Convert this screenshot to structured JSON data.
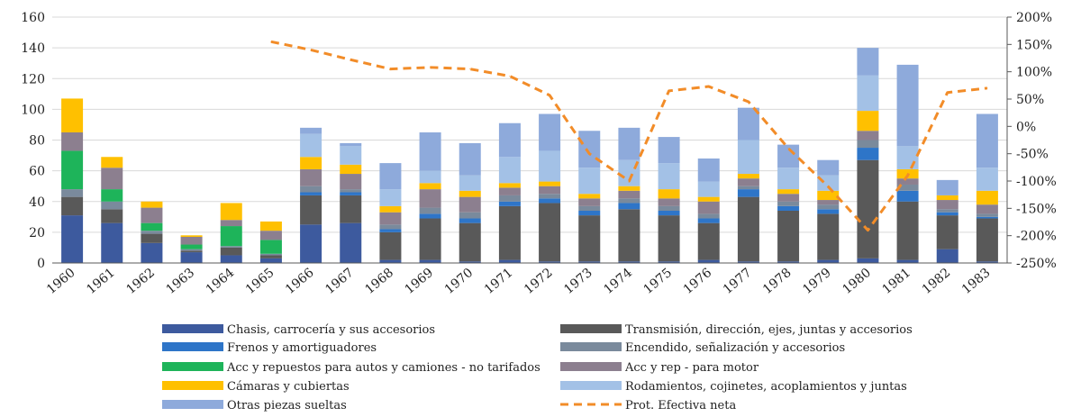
{
  "chart_data": {
    "type": "stacked-bar-line",
    "categories": [
      "1960",
      "1961",
      "1962",
      "1963",
      "1964",
      "1965",
      "1966",
      "1967",
      "1968",
      "1969",
      "1970",
      "1971",
      "1972",
      "1973",
      "1974",
      "1975",
      "1976",
      "1977",
      "1978",
      "1979",
      "1980",
      "1981",
      "1982",
      "1983"
    ],
    "y_left": {
      "min": 0,
      "max": 160,
      "ticks": [
        0,
        20,
        40,
        60,
        80,
        100,
        120,
        140,
        160
      ]
    },
    "y_right": {
      "min": -250,
      "max": 200,
      "ticks": [
        -250,
        -200,
        -150,
        -100,
        -50,
        0,
        50,
        100,
        150,
        200
      ],
      "tick_labels": [
        "-250%",
        "-200%",
        "-150%",
        "-100%",
        "-50%",
        "0%",
        "50%",
        "100%",
        "150%",
        "200%"
      ]
    },
    "series": [
      {
        "name": "Chasis, carrocería y sus accesorios",
        "color": "#3d5a9e",
        "values": [
          31,
          26,
          13,
          7,
          5,
          3,
          25,
          26,
          2,
          2,
          1,
          2,
          1,
          1,
          1,
          1,
          2,
          1,
          1,
          2,
          3,
          2,
          9,
          1
        ]
      },
      {
        "name": "Transmisión, dirección, ejes, juntas y accesorios",
        "color": "#595959",
        "values": [
          12,
          9,
          6,
          1,
          5,
          2,
          19,
          18,
          18,
          27,
          25,
          35,
          38,
          30,
          34,
          30,
          24,
          42,
          33,
          30,
          64,
          38,
          22,
          28
        ]
      },
      {
        "name": "Frenos y amortiguadores",
        "color": "#2e75c8",
        "values": [
          0,
          0,
          0,
          0,
          0,
          0,
          2,
          2,
          2,
          3,
          3,
          3,
          3,
          3,
          4,
          3,
          3,
          5,
          3,
          3,
          8,
          7,
          2,
          1
        ]
      },
      {
        "name": "Encendido, señalización y accesorios",
        "color": "#7a8a9c",
        "values": [
          5,
          5,
          2,
          1,
          1,
          1,
          4,
          2,
          3,
          4,
          4,
          4,
          3,
          3,
          3,
          3,
          3,
          2,
          3,
          3,
          5,
          4,
          2,
          2
        ]
      },
      {
        "name": "Acc y repuestos para autos y camiones - no tarifados",
        "color": "#1eb45a",
        "values": [
          25,
          8,
          5,
          3,
          13,
          9,
          0,
          0,
          0,
          0,
          0,
          0,
          0,
          0,
          0,
          0,
          0,
          0,
          0,
          0,
          0,
          0,
          0,
          0
        ]
      },
      {
        "name": "Acc y rep - para motor",
        "color": "#8c7f8f",
        "values": [
          12,
          14,
          10,
          5,
          4,
          6,
          11,
          10,
          8,
          12,
          10,
          5,
          5,
          5,
          5,
          5,
          8,
          5,
          5,
          3,
          6,
          4,
          6,
          6
        ]
      },
      {
        "name": "Cámaras y cubiertas",
        "color": "#ffc000",
        "values": [
          22,
          7,
          4,
          1,
          11,
          6,
          8,
          6,
          4,
          4,
          4,
          3,
          3,
          3,
          3,
          6,
          3,
          3,
          3,
          6,
          13,
          6,
          3,
          9
        ]
      },
      {
        "name": "Rodamientos, cojinetes, acoplamientos y juntas",
        "color": "#a3c1e6",
        "values": [
          0,
          0,
          0,
          0,
          0,
          0,
          15,
          12,
          11,
          8,
          10,
          17,
          20,
          17,
          17,
          17,
          10,
          22,
          14,
          10,
          23,
          15,
          0,
          15
        ]
      },
      {
        "name": "Otras piezas sueltas",
        "color": "#8eaadb",
        "values": [
          0,
          0,
          0,
          0,
          0,
          0,
          4,
          2,
          17,
          25,
          21,
          22,
          24,
          24,
          21,
          17,
          15,
          21,
          15,
          10,
          18,
          53,
          10,
          35
        ]
      }
    ],
    "line": {
      "name": "Prot. Efectiva neta",
      "color": "#f28c28",
      "categories": [
        "1965",
        "1966",
        "1967",
        "1968",
        "1969",
        "1970",
        "1971",
        "1972",
        "1973",
        "1974",
        "1975",
        "1976",
        "1977",
        "1978",
        "1979",
        "1980",
        "1981",
        "1982",
        "1983"
      ],
      "values": [
        155,
        140,
        122,
        105,
        108,
        105,
        92,
        57,
        -50,
        -100,
        65,
        73,
        45,
        -40,
        -110,
        -190,
        -90,
        62,
        70
      ]
    }
  },
  "legend": {
    "left": [
      {
        "label": "Chasis, carrocería y sus accesorios",
        "color": "#3d5a9e"
      },
      {
        "label": "Frenos y amortiguadores",
        "color": "#2e75c8"
      },
      {
        "label": "Acc y repuestos para autos y camiones - no tarifados",
        "color": "#1eb45a"
      },
      {
        "label": "Cámaras y cubiertas",
        "color": "#ffc000"
      },
      {
        "label": "Otras piezas sueltas",
        "color": "#8eaadb"
      }
    ],
    "right": [
      {
        "label": "Transmisión, dirección, ejes, juntas y accesorios",
        "color": "#595959"
      },
      {
        "label": "Encendido, señalización y accesorios",
        "color": "#7a8a9c"
      },
      {
        "label": "Acc y rep - para motor",
        "color": "#8c7f8f"
      },
      {
        "label": "Rodamientos, cojinetes, acoplamientos y juntas",
        "color": "#a3c1e6"
      },
      {
        "label": "Prot. Efectiva neta",
        "color": "#f28c28",
        "dashed": true
      }
    ]
  }
}
